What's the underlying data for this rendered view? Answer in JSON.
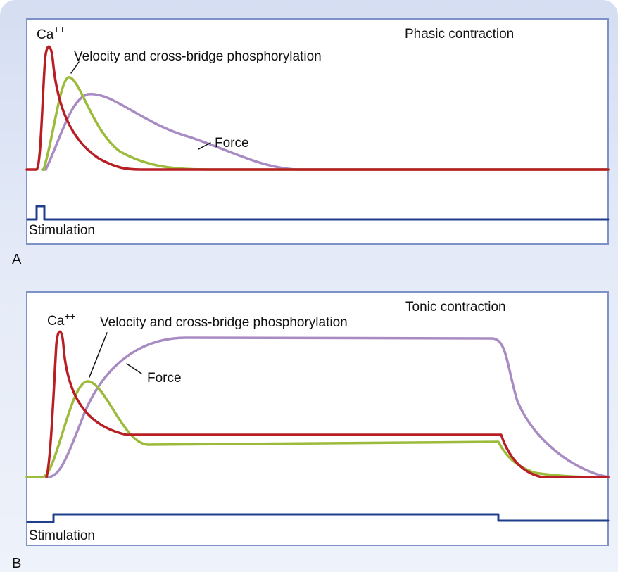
{
  "panel_a": {
    "letter": "A",
    "title": "Phasic contraction",
    "ca_label": "Ca",
    "ca_superscript": "++",
    "velocity_label": "Velocity and cross-bridge phosphorylation",
    "force_label": "Force",
    "stimulation_label": "Stimulation"
  },
  "panel_b": {
    "letter": "B",
    "title": "Tonic contraction",
    "ca_label": "Ca",
    "ca_superscript": "++",
    "velocity_label": "Velocity and cross-bridge phosphorylation",
    "force_label": "Force",
    "stimulation_label": "Stimulation"
  },
  "colors": {
    "calcium": "#b81e24",
    "velocity": "#9cbb3a",
    "force": "#a98bc3",
    "stimulation": "#1f3f8c",
    "frame": "#7e92c7"
  }
}
